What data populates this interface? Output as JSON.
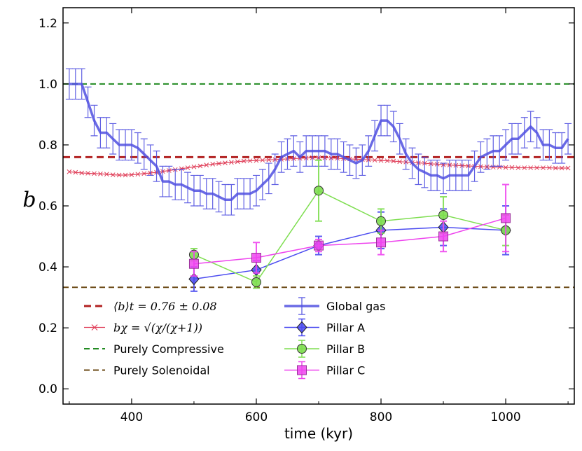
{
  "chart_data": {
    "type": "line",
    "xlabel": "time (kyr)",
    "ylabel": "b",
    "xlim": [
      290,
      1110
    ],
    "ylim": [
      -0.05,
      1.25
    ],
    "xticks": [
      400,
      600,
      800,
      1000
    ],
    "yticks": [
      0.0,
      0.2,
      0.4,
      0.6,
      0.8,
      1.0,
      1.2
    ],
    "ytick_labels": [
      "0.0",
      "0.2",
      "0.4",
      "0.6",
      "0.8",
      "1.0",
      "1.2"
    ],
    "hlines": [
      {
        "name": "mean_b",
        "value": 0.76,
        "color": "#b22222",
        "legend": "⟨b⟩t = 0.76 ± 0.08",
        "style": "thick-dash"
      },
      {
        "name": "compressive",
        "value": 1.0,
        "color": "#228b22",
        "legend": "Purely Compressive",
        "style": "dash"
      },
      {
        "name": "solenoidal",
        "value": 0.333,
        "color": "#6b4a16",
        "legend": "Purely Solenoidal",
        "style": "dash"
      }
    ],
    "bchi": {
      "legend": "bχ = √(χ/(χ+1))",
      "color": "#e0405a",
      "x": [
        300,
        310,
        320,
        330,
        340,
        350,
        360,
        370,
        380,
        390,
        400,
        410,
        420,
        430,
        440,
        450,
        460,
        470,
        480,
        490,
        500,
        510,
        520,
        530,
        540,
        550,
        560,
        570,
        580,
        590,
        600,
        610,
        620,
        630,
        640,
        650,
        660,
        670,
        680,
        690,
        700,
        710,
        720,
        730,
        740,
        750,
        760,
        770,
        780,
        790,
        800,
        810,
        820,
        830,
        840,
        850,
        860,
        870,
        880,
        890,
        900,
        910,
        920,
        930,
        940,
        950,
        960,
        970,
        980,
        990,
        1000,
        1010,
        1020,
        1030,
        1040,
        1050,
        1060,
        1070,
        1080,
        1090,
        1100
      ],
      "y": [
        0.712,
        0.71,
        0.708,
        0.707,
        0.706,
        0.705,
        0.704,
        0.702,
        0.701,
        0.701,
        0.702,
        0.704,
        0.706,
        0.708,
        0.71,
        0.713,
        0.716,
        0.719,
        0.722,
        0.725,
        0.728,
        0.731,
        0.734,
        0.737,
        0.739,
        0.741,
        0.743,
        0.745,
        0.747,
        0.748,
        0.749,
        0.75,
        0.751,
        0.752,
        0.753,
        0.754,
        0.755,
        0.756,
        0.757,
        0.758,
        0.758,
        0.758,
        0.757,
        0.756,
        0.755,
        0.754,
        0.753,
        0.752,
        0.751,
        0.75,
        0.749,
        0.748,
        0.747,
        0.745,
        0.744,
        0.742,
        0.741,
        0.74,
        0.738,
        0.737,
        0.735,
        0.734,
        0.733,
        0.732,
        0.731,
        0.73,
        0.729,
        0.728,
        0.727,
        0.727,
        0.726,
        0.726,
        0.725,
        0.725,
        0.725,
        0.725,
        0.725,
        0.725,
        0.724,
        0.724,
        0.724
      ]
    },
    "series": [
      {
        "name": "Global gas",
        "color": "#5050e0",
        "marker": "none",
        "x": [
          300,
          310,
          320,
          330,
          340,
          350,
          360,
          370,
          380,
          390,
          400,
          410,
          420,
          430,
          440,
          450,
          460,
          470,
          480,
          490,
          500,
          510,
          520,
          530,
          540,
          550,
          560,
          570,
          580,
          590,
          600,
          610,
          620,
          630,
          640,
          650,
          660,
          670,
          680,
          690,
          700,
          710,
          720,
          730,
          740,
          750,
          760,
          770,
          780,
          790,
          800,
          810,
          820,
          830,
          840,
          850,
          860,
          870,
          880,
          890,
          900,
          910,
          920,
          930,
          940,
          950,
          960,
          970,
          980,
          990,
          1000,
          1010,
          1020,
          1030,
          1040,
          1050,
          1060,
          1070,
          1080,
          1090,
          1100
        ],
        "y": [
          1.0,
          1.0,
          1.0,
          0.94,
          0.88,
          0.84,
          0.84,
          0.82,
          0.8,
          0.8,
          0.8,
          0.79,
          0.77,
          0.75,
          0.73,
          0.68,
          0.68,
          0.67,
          0.67,
          0.66,
          0.65,
          0.65,
          0.64,
          0.64,
          0.63,
          0.62,
          0.62,
          0.64,
          0.64,
          0.64,
          0.65,
          0.67,
          0.69,
          0.72,
          0.76,
          0.77,
          0.78,
          0.76,
          0.78,
          0.78,
          0.78,
          0.78,
          0.77,
          0.77,
          0.76,
          0.75,
          0.74,
          0.75,
          0.78,
          0.83,
          0.88,
          0.88,
          0.86,
          0.82,
          0.77,
          0.74,
          0.72,
          0.71,
          0.7,
          0.7,
          0.69,
          0.7,
          0.7,
          0.7,
          0.7,
          0.73,
          0.76,
          0.77,
          0.78,
          0.78,
          0.8,
          0.82,
          0.82,
          0.84,
          0.86,
          0.84,
          0.8,
          0.8,
          0.79,
          0.79,
          0.82
        ],
        "err": 0.05
      },
      {
        "name": "Pillar A",
        "color": "#4b4bf0",
        "marker": "diamond",
        "x": [
          500,
          600,
          700,
          800,
          900,
          1000
        ],
        "y": [
          0.36,
          0.39,
          0.47,
          0.52,
          0.53,
          0.52
        ],
        "err": [
          0.04,
          0.03,
          0.03,
          0.06,
          0.06,
          0.08
        ]
      },
      {
        "name": "Pillar B",
        "color": "#7ede50",
        "marker": "circle",
        "x": [
          500,
          600,
          700,
          800,
          900,
          1000
        ],
        "y": [
          0.44,
          0.35,
          0.65,
          0.55,
          0.57,
          0.52
        ],
        "err": [
          0.02,
          0.02,
          0.1,
          0.04,
          0.06,
          0.05
        ]
      },
      {
        "name": "Pillar C",
        "color": "#ee44ee",
        "marker": "square",
        "x": [
          500,
          600,
          700,
          800,
          900,
          1000
        ],
        "y": [
          0.41,
          0.43,
          0.47,
          0.48,
          0.5,
          0.56
        ],
        "err": [
          0.04,
          0.05,
          0.02,
          0.04,
          0.05,
          0.11
        ]
      }
    ],
    "legend_left": [
      {
        "key": "mean_b",
        "label": "⟨b⟩t = 0.76 ± 0.08"
      },
      {
        "key": "bchi",
        "label": "bχ = √(χ/(χ+1))"
      },
      {
        "key": "compressive",
        "label": "Purely Compressive"
      },
      {
        "key": "solenoidal",
        "label": "Purely Solenoidal"
      }
    ],
    "legend_right": [
      "Global gas",
      "Pillar A",
      "Pillar B",
      "Pillar C"
    ]
  }
}
